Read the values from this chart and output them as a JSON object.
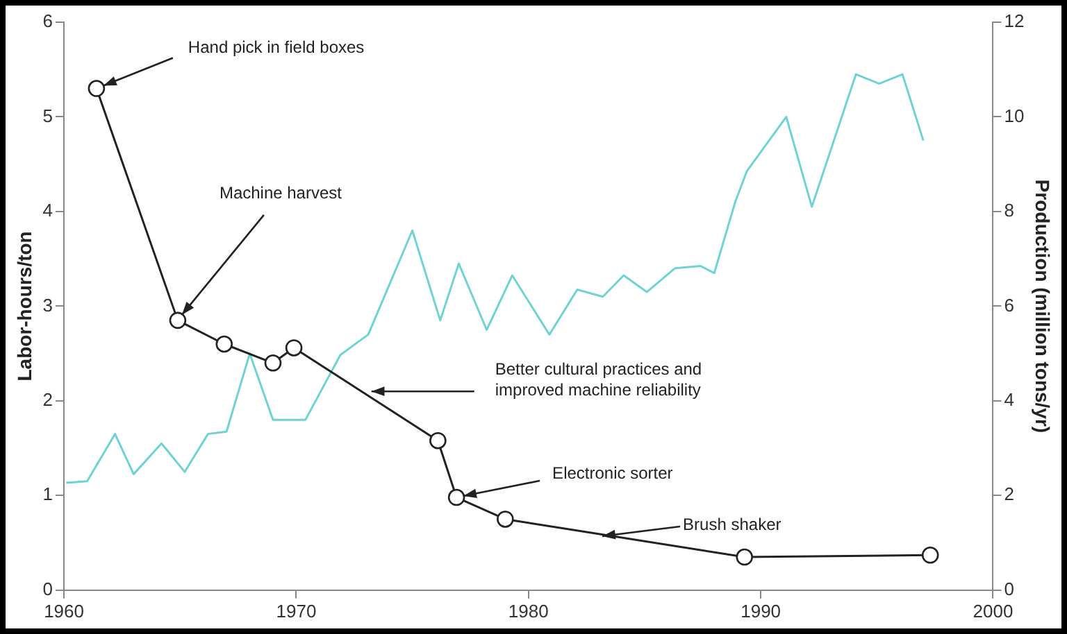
{
  "chart_data": {
    "type": "line",
    "ylabel": "Labor-hours/ton",
    "y2label": "Production (million tons/yr)",
    "xlim": [
      1960,
      2000
    ],
    "xticks": [
      1960,
      1970,
      1980,
      1990,
      2000
    ],
    "ylim": [
      0,
      6
    ],
    "yticks": [
      0,
      1,
      2,
      3,
      4,
      5,
      6
    ],
    "y2lim": [
      0,
      12
    ],
    "y2ticks": [
      0,
      2,
      4,
      6,
      8,
      10,
      12
    ],
    "grid": false,
    "legend": false,
    "series": [
      {
        "color": "#222222",
        "marker": "circle",
        "x": [
          1961.4,
          1964.9,
          1966.9,
          1969,
          1969.9,
          1976.1,
          1976.9,
          1979,
          1989.3,
          1997.3
        ],
        "values": [
          5.3,
          2.85,
          2.6,
          2.4,
          2.56,
          1.58,
          0.98,
          0.75,
          0.35,
          0.37
        ]
      },
      {
        "color": "#6fd3d3",
        "marker": "none",
        "axis": "y2",
        "x": [
          1960.1,
          1961,
          1962.2,
          1963,
          1964.2,
          1965.2,
          1966.2,
          1967,
          1968,
          1969,
          1970.4,
          1971.9,
          1973.1,
          1975,
          1976.2,
          1977,
          1978.2,
          1979.3,
          1980.9,
          1982.1,
          1983.2,
          1984.1,
          1985.1,
          1986.3,
          1987.4,
          1988,
          1988.9,
          1989.4,
          1991.1,
          1992.2,
          1994.1,
          1995.1,
          1996.1,
          1997
        ],
        "values": [
          2.27,
          2.3,
          3.3,
          2.45,
          3.1,
          2.5,
          3.3,
          3.35,
          5.0,
          3.6,
          3.6,
          4.97,
          5.4,
          7.6,
          5.7,
          6.9,
          5.5,
          6.65,
          5.4,
          6.35,
          6.2,
          6.65,
          6.3,
          6.8,
          6.85,
          6.7,
          8.2,
          8.85,
          10.0,
          8.1,
          10.9,
          10.7,
          10.9,
          9.5
        ]
      }
    ],
    "annotations": [
      {
        "text": "Hand pick in field boxes",
        "x": 1961.4,
        "y": 5.3
      },
      {
        "text": "Machine harvest",
        "x": 1964.9,
        "y": 2.85
      },
      {
        "text": "Better cultural practices and\nimproved machine reliability",
        "x": 1973,
        "y": 2.1
      },
      {
        "text": "Electronic sorter",
        "x": 1976.9,
        "y": 0.98
      },
      {
        "text": "Brush shaker",
        "x": 1983,
        "y": 0.6
      }
    ]
  }
}
